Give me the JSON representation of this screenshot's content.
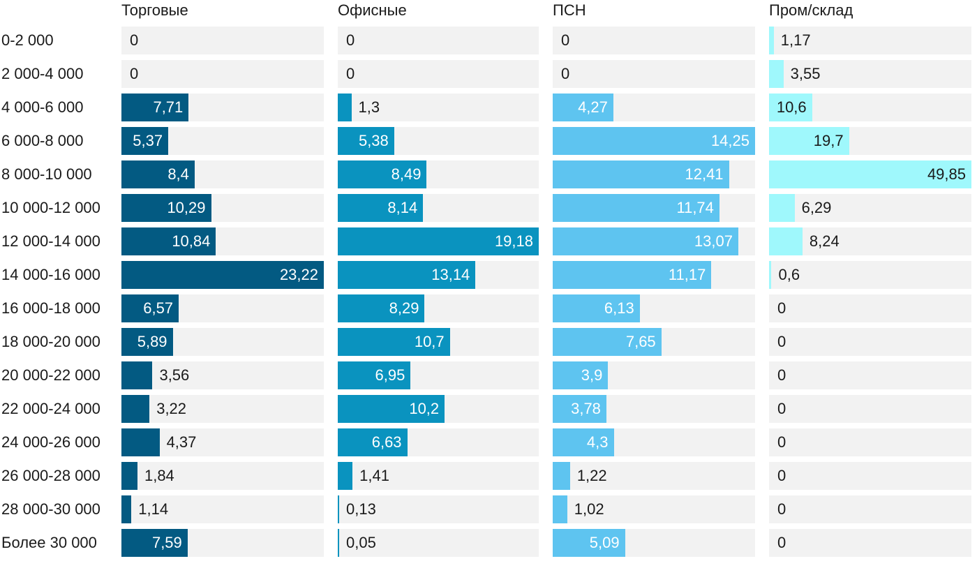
{
  "chart_data": {
    "type": "bar",
    "orientation": "horizontal",
    "layout": "small-multiples",
    "categories": [
      "0-2 000",
      "2 000-4 000",
      "4 000-6 000",
      "6 000-8 000",
      "8 000-10 000",
      "10 000-12 000",
      "12 000-14 000",
      "14 000-16 000",
      "16 000-18 000",
      "18 000-20 000",
      "20 000-22 000",
      "22 000-24 000",
      "24 000-26 000",
      "26 000-28 000",
      "28 000-30 000",
      "Более 30 000"
    ],
    "series": [
      {
        "name": "Торговые",
        "color": "#035a82",
        "max": 23.22,
        "values": [
          0,
          0,
          7.71,
          5.37,
          8.4,
          10.29,
          10.84,
          23.22,
          6.57,
          5.89,
          3.56,
          3.22,
          4.37,
          1.84,
          1.14,
          7.59
        ],
        "labels": [
          "0",
          "0",
          "7,71",
          "5,37",
          "8,4",
          "10,29",
          "10,84",
          "23,22",
          "6,57",
          "5,89",
          "3,56",
          "3,22",
          "4,37",
          "1,84",
          "1,14",
          "7,59"
        ]
      },
      {
        "name": "Офисные",
        "color": "#0a93bf",
        "max": 19.18,
        "values": [
          0,
          0,
          1.3,
          5.38,
          8.49,
          8.14,
          19.18,
          13.14,
          8.29,
          10.7,
          6.95,
          10.2,
          6.63,
          1.41,
          0.13,
          0.05
        ],
        "labels": [
          "0",
          "0",
          "1,3",
          "5,38",
          "8,49",
          "8,14",
          "19,18",
          "13,14",
          "8,29",
          "10,7",
          "6,95",
          "10,2",
          "6,63",
          "1,41",
          "0,13",
          "0,05"
        ]
      },
      {
        "name": "ПСН",
        "color": "#5ec4f0",
        "max": 14.25,
        "values": [
          0,
          0,
          4.27,
          14.25,
          12.41,
          11.74,
          13.07,
          11.17,
          6.13,
          7.65,
          3.9,
          3.78,
          4.3,
          1.22,
          1.02,
          5.09
        ],
        "labels": [
          "0",
          "0",
          "4,27",
          "14,25",
          "12,41",
          "11,74",
          "13,07",
          "11,17",
          "6,13",
          "7,65",
          "3,9",
          "3,78",
          "4,3",
          "1,22",
          "1,02",
          "5,09"
        ]
      },
      {
        "name": "Пром/склад",
        "color": "#9ff8fc",
        "max": 49.85,
        "values": [
          1.17,
          3.55,
          10.6,
          19.7,
          49.85,
          6.29,
          8.24,
          0.6,
          0,
          0,
          0,
          0,
          0,
          0,
          0,
          0
        ],
        "labels": [
          "1,17",
          "3,55",
          "10,6",
          "19,7",
          "49,85",
          "6,29",
          "8,24",
          "0,6",
          "0",
          "0",
          "0",
          "0",
          "0",
          "0",
          "0",
          "0"
        ]
      }
    ],
    "title": "",
    "xlabel": "",
    "ylabel": "",
    "grid": false,
    "legend": "none"
  },
  "colors": {
    "track": "#f2f2f2",
    "text": "#1a1a1a",
    "label_inside": "#ffffff"
  }
}
